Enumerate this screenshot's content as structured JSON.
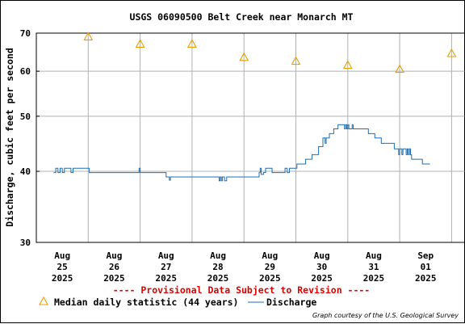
{
  "chart_data": {
    "type": "line",
    "title": "USGS 06090500 Belt Creek near Monarch MT",
    "ylabel": "Discharge, cubic feet per second",
    "xlabel": "",
    "yscale": "log",
    "ylim": [
      30,
      70
    ],
    "y_ticks": [
      {
        "value": 30,
        "label": "30"
      },
      {
        "value": 40,
        "label": "40"
      },
      {
        "value": 50,
        "label": "50"
      },
      {
        "value": 60,
        "label": "60"
      },
      {
        "value": 70,
        "label": "70"
      }
    ],
    "x_ticks": [
      {
        "month": "Aug",
        "day": "25",
        "year": "2025"
      },
      {
        "month": "Aug",
        "day": "26",
        "year": "2025"
      },
      {
        "month": "Aug",
        "day": "27",
        "year": "2025"
      },
      {
        "month": "Aug",
        "day": "28",
        "year": "2025"
      },
      {
        "month": "Aug",
        "day": "29",
        "year": "2025"
      },
      {
        "month": "Aug",
        "day": "30",
        "year": "2025"
      },
      {
        "month": "Aug",
        "day": "31",
        "year": "2025"
      },
      {
        "month": "Sep",
        "day": "01",
        "year": "2025"
      }
    ],
    "grid": true,
    "series": [
      {
        "name": "Median daily statistic (44 years)",
        "marker": "triangle",
        "color": "#e6a000",
        "points": [
          {
            "x": "2025-08-25 12:00",
            "y": 69.0
          },
          {
            "x": "2025-08-26 12:00",
            "y": 67.0
          },
          {
            "x": "2025-08-27 12:00",
            "y": 67.0
          },
          {
            "x": "2025-08-28 12:00",
            "y": 63.5
          },
          {
            "x": "2025-08-29 12:00",
            "y": 62.5
          },
          {
            "x": "2025-08-30 12:00",
            "y": 61.5
          },
          {
            "x": "2025-08-31 12:00",
            "y": 60.5
          },
          {
            "x": "2025-09-01 12:00",
            "y": 64.5
          }
        ]
      },
      {
        "name": "Discharge",
        "color": "#1f6fb0",
        "points": [
          {
            "x": "2025-08-24 20:00",
            "y": 39.8
          },
          {
            "x": "2025-08-24 21:00",
            "y": 40.5
          },
          {
            "x": "2025-08-24 22:00",
            "y": 39.8
          },
          {
            "x": "2025-08-24 23:00",
            "y": 40.5
          },
          {
            "x": "2025-08-25 00:00",
            "y": 39.8
          },
          {
            "x": "2025-08-25 01:00",
            "y": 40.5
          },
          {
            "x": "2025-08-25 03:00",
            "y": 40.5
          },
          {
            "x": "2025-08-25 04:00",
            "y": 39.8
          },
          {
            "x": "2025-08-25 05:00",
            "y": 40.5
          },
          {
            "x": "2025-08-25 12:00",
            "y": 40.5
          },
          {
            "x": "2025-08-25 12:30",
            "y": 39.8
          },
          {
            "x": "2025-08-26 11:00",
            "y": 39.8
          },
          {
            "x": "2025-08-26 11:30",
            "y": 40.5
          },
          {
            "x": "2025-08-26 12:00",
            "y": 39.8
          },
          {
            "x": "2025-08-26 23:00",
            "y": 39.8
          },
          {
            "x": "2025-08-27 00:00",
            "y": 39.1
          },
          {
            "x": "2025-08-27 01:00",
            "y": 39.1
          },
          {
            "x": "2025-08-27 01:30",
            "y": 38.6
          },
          {
            "x": "2025-08-27 02:00",
            "y": 39.1
          },
          {
            "x": "2025-08-28 00:00",
            "y": 39.1
          },
          {
            "x": "2025-08-28 00:30",
            "y": 38.5
          },
          {
            "x": "2025-08-28 01:00",
            "y": 39.1
          },
          {
            "x": "2025-08-28 01:30",
            "y": 38.5
          },
          {
            "x": "2025-08-28 02:00",
            "y": 39.1
          },
          {
            "x": "2025-08-28 03:00",
            "y": 38.5
          },
          {
            "x": "2025-08-28 04:00",
            "y": 39.1
          },
          {
            "x": "2025-08-28 18:00",
            "y": 39.1
          },
          {
            "x": "2025-08-28 19:00",
            "y": 39.8
          },
          {
            "x": "2025-08-28 19:30",
            "y": 40.5
          },
          {
            "x": "2025-08-28 20:00",
            "y": 39.5
          },
          {
            "x": "2025-08-28 21:00",
            "y": 39.8
          },
          {
            "x": "2025-08-28 22:00",
            "y": 40.5
          },
          {
            "x": "2025-08-29 00:00",
            "y": 40.5
          },
          {
            "x": "2025-08-29 01:00",
            "y": 39.8
          },
          {
            "x": "2025-08-29 06:00",
            "y": 39.8
          },
          {
            "x": "2025-08-29 07:00",
            "y": 40.5
          },
          {
            "x": "2025-08-29 08:00",
            "y": 39.8
          },
          {
            "x": "2025-08-29 09:00",
            "y": 40.5
          },
          {
            "x": "2025-08-29 12:00",
            "y": 40.5
          },
          {
            "x": "2025-08-29 12:30",
            "y": 41.2
          },
          {
            "x": "2025-08-29 16:00",
            "y": 41.2
          },
          {
            "x": "2025-08-29 16:30",
            "y": 42.0
          },
          {
            "x": "2025-08-29 19:00",
            "y": 42.0
          },
          {
            "x": "2025-08-29 19:30",
            "y": 42.8
          },
          {
            "x": "2025-08-29 22:00",
            "y": 42.8
          },
          {
            "x": "2025-08-29 22:30",
            "y": 44.2
          },
          {
            "x": "2025-08-30 00:00",
            "y": 44.2
          },
          {
            "x": "2025-08-30 00:30",
            "y": 45.8
          },
          {
            "x": "2025-08-30 01:00",
            "y": 45.8
          },
          {
            "x": "2025-08-30 01:30",
            "y": 44.8
          },
          {
            "x": "2025-08-30 02:00",
            "y": 45.8
          },
          {
            "x": "2025-08-30 03:00",
            "y": 45.8
          },
          {
            "x": "2025-08-30 03:30",
            "y": 46.6
          },
          {
            "x": "2025-08-30 05:00",
            "y": 46.6
          },
          {
            "x": "2025-08-30 05:30",
            "y": 47.5
          },
          {
            "x": "2025-08-30 07:00",
            "y": 47.5
          },
          {
            "x": "2025-08-30 07:30",
            "y": 48.3
          },
          {
            "x": "2025-08-30 10:00",
            "y": 48.3
          },
          {
            "x": "2025-08-30 10:30",
            "y": 47.5
          },
          {
            "x": "2025-08-30 11:00",
            "y": 48.3
          },
          {
            "x": "2025-08-30 11:30",
            "y": 47.5
          },
          {
            "x": "2025-08-30 12:00",
            "y": 48.3
          },
          {
            "x": "2025-08-30 12:30",
            "y": 47.5
          },
          {
            "x": "2025-08-30 13:30",
            "y": 47.5
          },
          {
            "x": "2025-08-30 14:00",
            "y": 48.3
          },
          {
            "x": "2025-08-30 14:30",
            "y": 47.5
          },
          {
            "x": "2025-08-30 21:00",
            "y": 47.5
          },
          {
            "x": "2025-08-30 21:30",
            "y": 46.6
          },
          {
            "x": "2025-08-31 00:00",
            "y": 46.6
          },
          {
            "x": "2025-08-31 00:30",
            "y": 45.8
          },
          {
            "x": "2025-08-31 03:00",
            "y": 45.8
          },
          {
            "x": "2025-08-31 03:30",
            "y": 44.8
          },
          {
            "x": "2025-08-31 09:00",
            "y": 44.8
          },
          {
            "x": "2025-08-31 09:30",
            "y": 43.8
          },
          {
            "x": "2025-08-31 11:00",
            "y": 43.8
          },
          {
            "x": "2025-08-31 11:30",
            "y": 42.8
          },
          {
            "x": "2025-08-31 12:00",
            "y": 43.8
          },
          {
            "x": "2025-08-31 12:30",
            "y": 43.8
          },
          {
            "x": "2025-08-31 13:00",
            "y": 42.8
          },
          {
            "x": "2025-08-31 13:30",
            "y": 43.8
          },
          {
            "x": "2025-08-31 14:30",
            "y": 43.8
          },
          {
            "x": "2025-08-31 15:00",
            "y": 42.8
          },
          {
            "x": "2025-08-31 15:30",
            "y": 43.8
          },
          {
            "x": "2025-08-31 16:00",
            "y": 42.8
          },
          {
            "x": "2025-08-31 16:30",
            "y": 43.8
          },
          {
            "x": "2025-08-31 17:00",
            "y": 42.8
          },
          {
            "x": "2025-08-31 17:30",
            "y": 42.0
          },
          {
            "x": "2025-08-31 22:00",
            "y": 42.0
          },
          {
            "x": "2025-08-31 22:30",
            "y": 41.2
          },
          {
            "x": "2025-09-01 02:00",
            "y": 41.2
          }
        ]
      }
    ],
    "provisional_note": "---- Provisional Data Subject to Revision ----",
    "legend": [
      {
        "label": "Median daily statistic (44 years)",
        "symbol": "triangle",
        "color": "#e6a000"
      },
      {
        "label": "Discharge",
        "symbol": "line",
        "color": "#1f6fb0"
      }
    ],
    "credit": "Graph courtesy of the U.S. Geological Survey",
    "colors": {
      "grid": "#b0b0b0",
      "discharge": "#1f6fb0",
      "median": "#e6a000",
      "provisional": "#dd0000"
    }
  }
}
